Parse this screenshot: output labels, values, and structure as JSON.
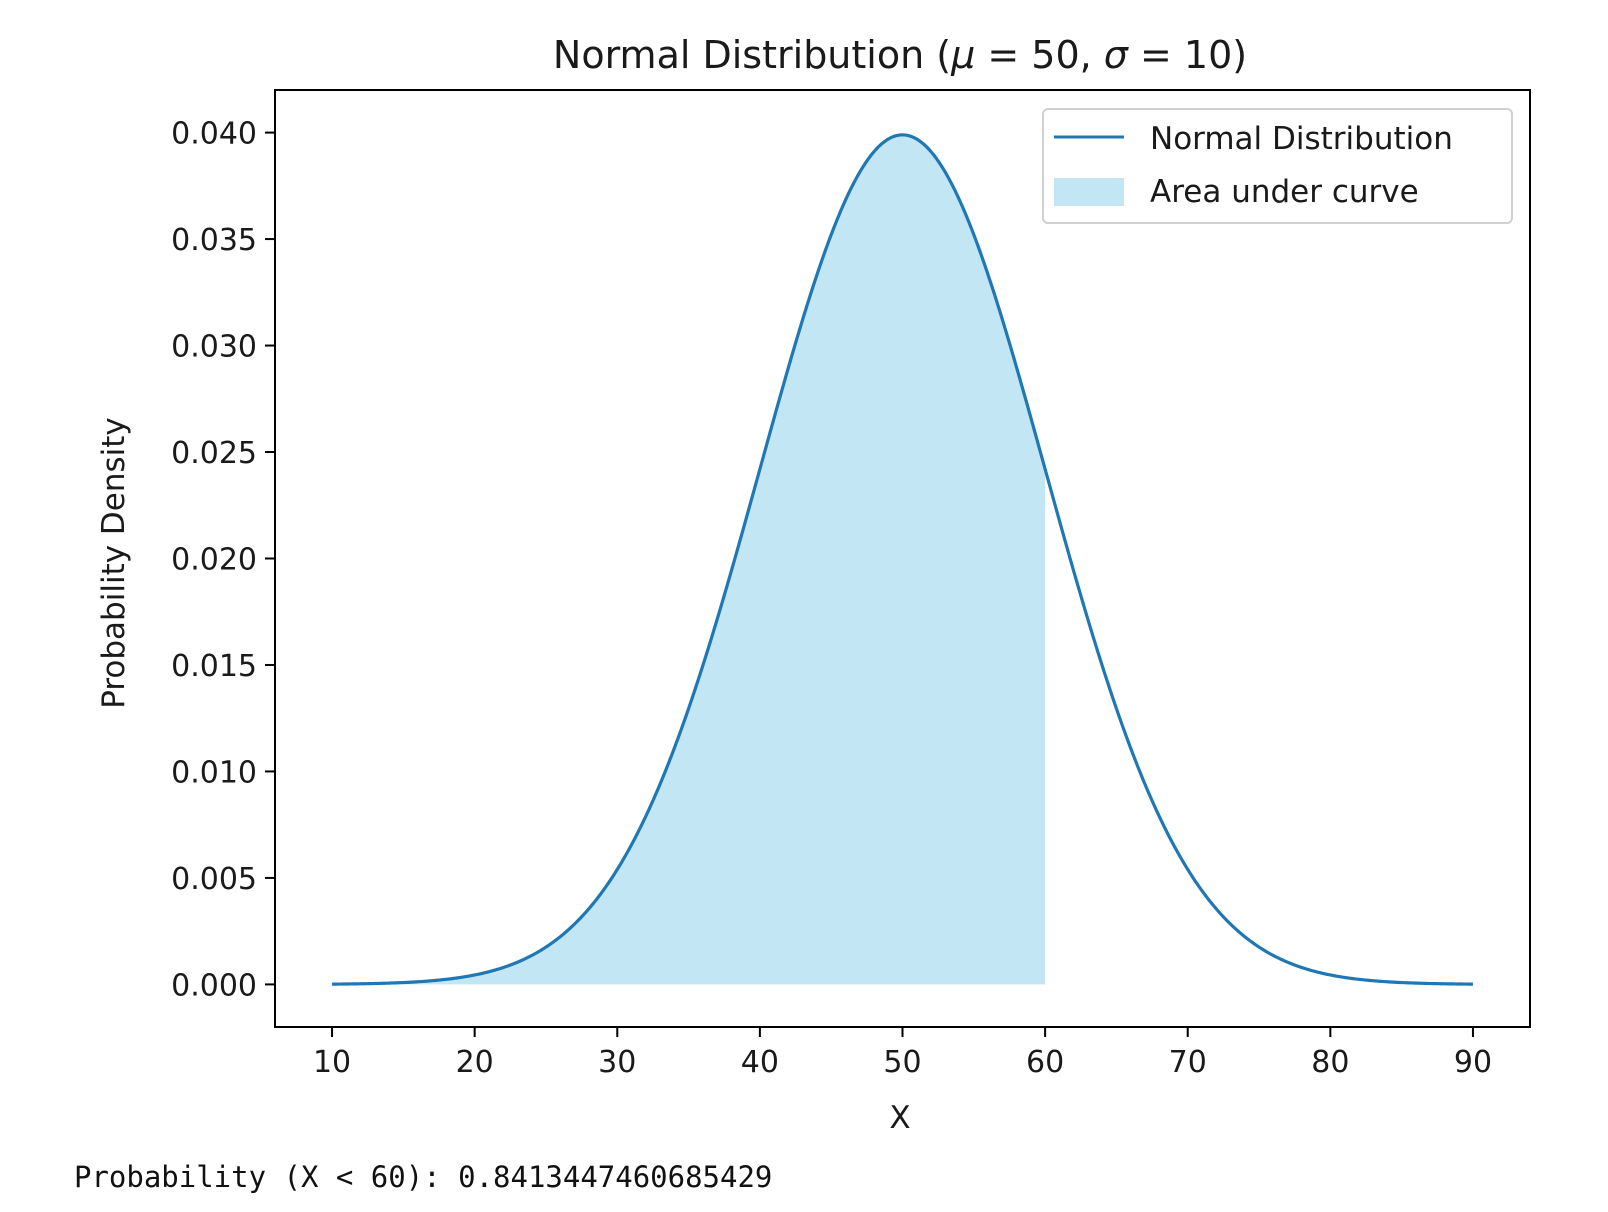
{
  "chart_data": {
    "type": "area",
    "title_main": "Normal Distribution (",
    "title_mu": "μ",
    "title_mid": " = 50, ",
    "title_sigma": "σ",
    "title_end": " = 10)",
    "xlabel": "X",
    "ylabel": "Probability Density",
    "mu": 50,
    "sigma": 10,
    "x_range": [
      10,
      90
    ],
    "shade_range": [
      10,
      60
    ],
    "xlim": [
      6,
      94
    ],
    "ylim": [
      -0.002,
      0.042
    ],
    "x_ticks": [
      10,
      20,
      30,
      40,
      50,
      60,
      70,
      80,
      90
    ],
    "y_ticks": [
      "0.000",
      "0.005",
      "0.010",
      "0.015",
      "0.020",
      "0.025",
      "0.030",
      "0.035",
      "0.040"
    ],
    "grid": false,
    "legend_placement": "top-right",
    "series": [
      {
        "name": "Normal Distribution",
        "kind": "line",
        "color": "#1f77b4"
      },
      {
        "name": "Area under curve",
        "kind": "fill",
        "color": "#87ceeb",
        "opacity": 0.5
      }
    ]
  },
  "output": {
    "text": "Probability (X < 60): 0.8413447460685429"
  }
}
